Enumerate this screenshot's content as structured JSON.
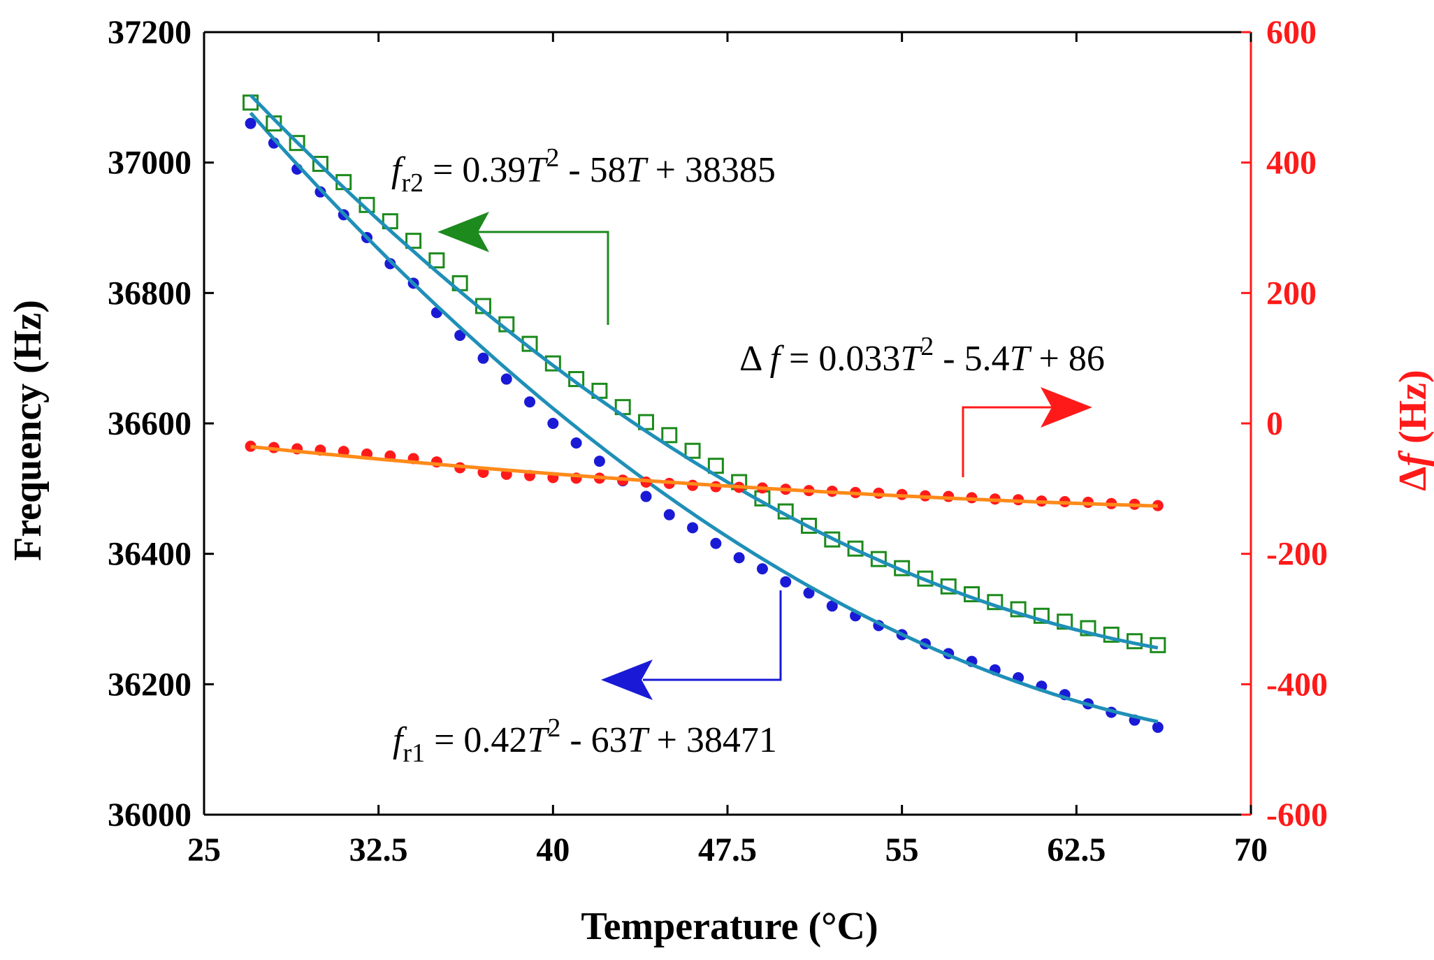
{
  "chart_data": {
    "type": "scatter",
    "x_axis": {
      "label": "Temperature (°C)",
      "range": [
        25,
        70
      ],
      "ticks": [
        "25",
        "32.5",
        "40",
        "47.5",
        "55",
        "62.5",
        "70"
      ]
    },
    "y_axis_left": {
      "label": "Frequency (Hz)",
      "range": [
        36000,
        37200
      ],
      "ticks": [
        "36000",
        "36200",
        "36400",
        "36600",
        "36800",
        "37000",
        "37200"
      ]
    },
    "y_axis_right": {
      "label_symbol": "Δ",
      "label_var": "f",
      "label_unit": " (Hz)",
      "range": [
        -600,
        600
      ],
      "ticks": [
        "-600",
        "-400",
        "-200",
        "0",
        "200",
        "400",
        "600"
      ]
    },
    "series": [
      {
        "name": "fr1",
        "axis": "left",
        "marker": "filled-circle",
        "marker_color": "#1a1ad6",
        "fit_color": "#1f8fb8",
        "fit": {
          "a": 0.42,
          "b": -63,
          "c": 38471
        },
        "x_start": 27.0,
        "x_end": 66.0,
        "points": [
          [
            27.0,
            37060
          ],
          [
            28.0,
            37030
          ],
          [
            29.0,
            36990
          ],
          [
            30.0,
            36955
          ],
          [
            31.0,
            36920
          ],
          [
            32.0,
            36885
          ],
          [
            33.0,
            36845
          ],
          [
            34.0,
            36815
          ],
          [
            35.0,
            36770
          ],
          [
            36.0,
            36735
          ],
          [
            37.0,
            36700
          ],
          [
            38.0,
            36668
          ],
          [
            39.0,
            36633
          ],
          [
            40.0,
            36600
          ],
          [
            41.0,
            36570
          ],
          [
            42.0,
            36542
          ],
          [
            43.0,
            36512
          ],
          [
            44.0,
            36488
          ],
          [
            45.0,
            36460
          ],
          [
            46.0,
            36440
          ],
          [
            47.0,
            36416
          ],
          [
            48.0,
            36394
          ],
          [
            49.0,
            36377
          ],
          [
            50.0,
            36357
          ],
          [
            51.0,
            36340
          ],
          [
            52.0,
            36320
          ],
          [
            53.0,
            36305
          ],
          [
            54.0,
            36290
          ],
          [
            55.0,
            36276
          ],
          [
            56.0,
            36262
          ],
          [
            57.0,
            36247
          ],
          [
            58.0,
            36235
          ],
          [
            59.0,
            36222
          ],
          [
            60.0,
            36210
          ],
          [
            61.0,
            36197
          ],
          [
            62.0,
            36184
          ],
          [
            63.0,
            36170
          ],
          [
            64.0,
            36157
          ],
          [
            65.0,
            36145
          ],
          [
            66.0,
            36134
          ]
        ]
      },
      {
        "name": "fr2",
        "axis": "left",
        "marker": "open-square",
        "marker_color": "#1c8a1c",
        "fit_color": "#1f8fb8",
        "fit": {
          "a": 0.39,
          "b": -58,
          "c": 38385
        },
        "x_start": 27.0,
        "x_end": 66.0,
        "points": [
          [
            27.0,
            37092
          ],
          [
            28.0,
            37060
          ],
          [
            29.0,
            37030
          ],
          [
            30.0,
            36998
          ],
          [
            31.0,
            36970
          ],
          [
            32.0,
            36935
          ],
          [
            33.0,
            36910
          ],
          [
            34.0,
            36880
          ],
          [
            35.0,
            36850
          ],
          [
            36.0,
            36815
          ],
          [
            37.0,
            36780
          ],
          [
            38.0,
            36752
          ],
          [
            39.0,
            36722
          ],
          [
            40.0,
            36692
          ],
          [
            41.0,
            36668
          ],
          [
            42.0,
            36650
          ],
          [
            43.0,
            36625
          ],
          [
            44.0,
            36602
          ],
          [
            45.0,
            36582
          ],
          [
            46.0,
            36558
          ],
          [
            47.0,
            36535
          ],
          [
            48.0,
            36510
          ],
          [
            49.0,
            36485
          ],
          [
            50.0,
            36465
          ],
          [
            51.0,
            36443
          ],
          [
            52.0,
            36422
          ],
          [
            53.0,
            36408
          ],
          [
            54.0,
            36392
          ],
          [
            55.0,
            36378
          ],
          [
            56.0,
            36362
          ],
          [
            57.0,
            36350
          ],
          [
            58.0,
            36338
          ],
          [
            59.0,
            36326
          ],
          [
            60.0,
            36315
          ],
          [
            61.0,
            36305
          ],
          [
            62.0,
            36296
          ],
          [
            63.0,
            36286
          ],
          [
            64.0,
            36276
          ],
          [
            65.0,
            36266
          ],
          [
            66.0,
            36260
          ]
        ]
      },
      {
        "name": "Δf",
        "axis": "right",
        "marker": "filled-circle",
        "marker_color": "#ff1a1a",
        "fit_color": "#ff8a1a",
        "fit": {
          "a": 0.033,
          "b": -5.4,
          "c": 86
        },
        "x_start": 27.0,
        "x_end": 66.0,
        "points": [
          [
            27.0,
            -35
          ],
          [
            28.0,
            -37
          ],
          [
            29.0,
            -39
          ],
          [
            30.0,
            -41
          ],
          [
            31.0,
            -43
          ],
          [
            32.0,
            -47
          ],
          [
            33.0,
            -50
          ],
          [
            34.0,
            -54
          ],
          [
            35.0,
            -59
          ],
          [
            36.0,
            -68
          ],
          [
            37.0,
            -75
          ],
          [
            38.0,
            -78
          ],
          [
            39.0,
            -80
          ],
          [
            40.0,
            -83
          ],
          [
            41.0,
            -84
          ],
          [
            42.0,
            -84
          ],
          [
            43.0,
            -87
          ],
          [
            44.0,
            -90
          ],
          [
            45.0,
            -92
          ],
          [
            46.0,
            -95
          ],
          [
            47.0,
            -97
          ],
          [
            48.0,
            -98
          ],
          [
            49.0,
            -99
          ],
          [
            50.0,
            -101
          ],
          [
            51.0,
            -103
          ],
          [
            52.0,
            -104
          ],
          [
            53.0,
            -106
          ],
          [
            54.0,
            -107
          ],
          [
            55.0,
            -109
          ],
          [
            56.0,
            -111
          ],
          [
            57.0,
            -112
          ],
          [
            58.0,
            -114
          ],
          [
            59.0,
            -116
          ],
          [
            60.0,
            -117
          ],
          [
            61.0,
            -119
          ],
          [
            62.0,
            -120
          ],
          [
            63.0,
            -121
          ],
          [
            64.0,
            -123
          ],
          [
            65.0,
            -124
          ],
          [
            66.0,
            -126
          ]
        ]
      }
    ],
    "annotations": [
      {
        "id": "fr2",
        "parts": [
          "f",
          "r2",
          " = 0.39",
          "T",
          "2",
          " - 58",
          "T",
          " + 38385"
        ]
      },
      {
        "id": "fr1",
        "parts": [
          "f",
          "r1",
          " = 0.42",
          "T",
          "2",
          " - 63",
          "T",
          " + 38471"
        ]
      },
      {
        "id": "df",
        "parts": [
          "Δ ",
          "f",
          " = 0.033",
          "T",
          "2",
          " - 5.4",
          "T",
          " + 86"
        ]
      }
    ],
    "colors": {
      "left_axis": "#000000",
      "right_axis": "#ff1a1a",
      "arrow_fr2": "#1c8a1c",
      "arrow_fr1": "#1a1ad6",
      "arrow_df": "#ff1a1a"
    }
  }
}
